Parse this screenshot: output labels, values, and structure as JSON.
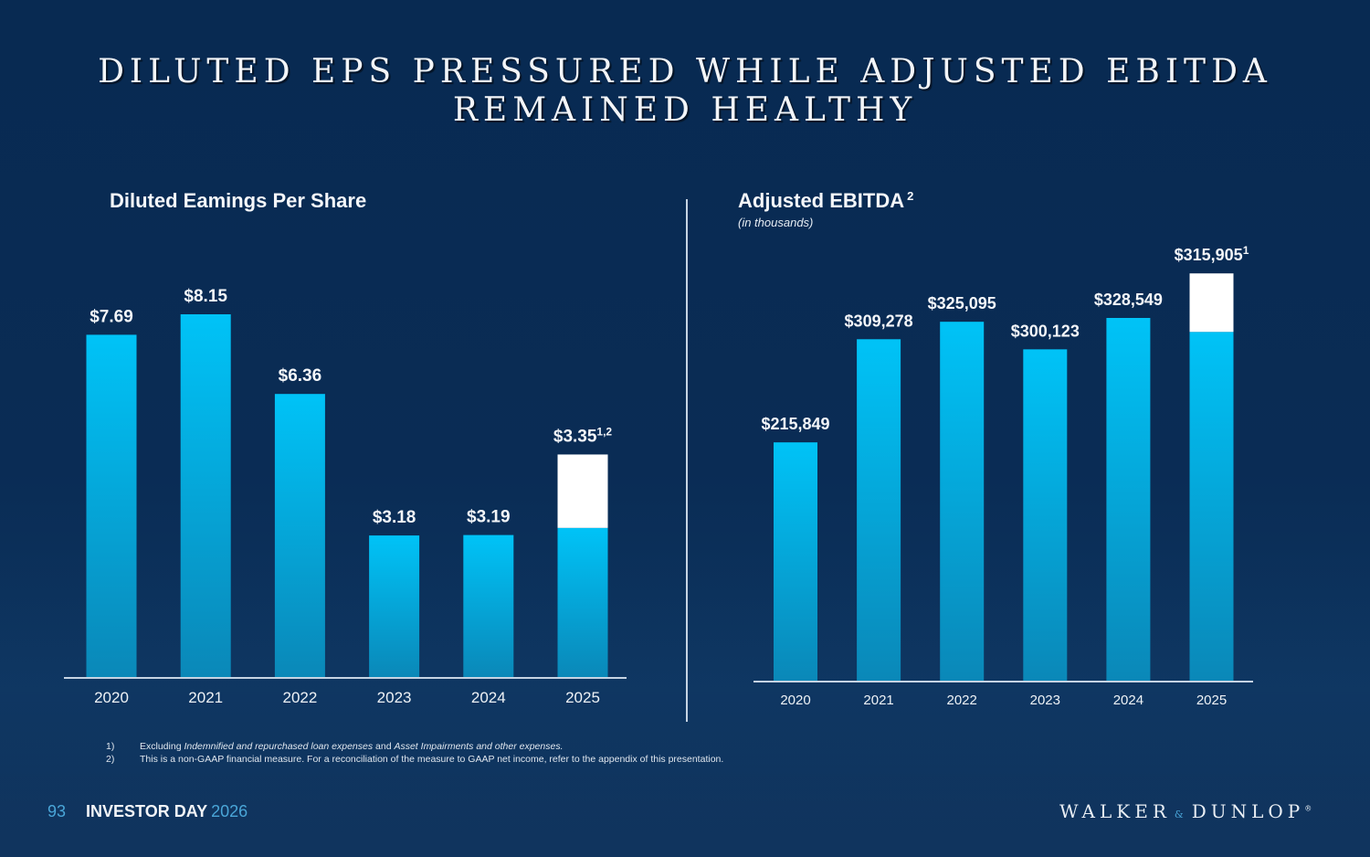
{
  "slide": {
    "title_line1": "DILUTED EPS PRESSURED WHILE ADJUSTED EBITDA",
    "title_line2": "REMAINED HEALTHY",
    "page_number": "93",
    "event_label": "INVESTOR DAY",
    "event_year": "2026",
    "logo_left": "WALKER",
    "logo_amp": "&",
    "logo_right": "DUNLOP",
    "logo_mark": "®"
  },
  "footnotes": [
    {
      "num": "1)",
      "text_plain": "Excluding ",
      "text_italic": "Indemnified and repurchased loan expenses",
      "text_plain2": " and ",
      "text_italic2": "Asset Impairments and other expenses."
    },
    {
      "num": "2)",
      "text": "This is a non-GAAP financial measure. For a reconciliation of the measure to GAAP net income, refer to the appendix of this presentation."
    }
  ],
  "colors": {
    "background": "#0a2c55",
    "bar_top": "#00c3f7",
    "bar_bottom": "#0a88b8",
    "highlight_box": "#ffffff",
    "axis": "#c6d4e3",
    "accent": "#4aa6d8"
  },
  "chart_data": [
    {
      "type": "bar",
      "title": "Diluted Earnings Per Share",
      "title_display": "Diluted Eamings Per Share",
      "subtitle": "",
      "xlabel": "",
      "ylabel": "",
      "categories": [
        "2020",
        "2021",
        "2022",
        "2023",
        "2024",
        "2025"
      ],
      "values": [
        7.69,
        8.15,
        6.36,
        3.18,
        3.19,
        3.35
      ],
      "data_labels": [
        "$7.69",
        "$8.15",
        "$6.36",
        "$3.18",
        "$3.19",
        "$3.35"
      ],
      "label_superscripts": [
        "",
        "",
        "",
        "",
        "",
        "1,2"
      ],
      "highlight_last_top_of": 1.65,
      "ylim": [
        0,
        8.15
      ],
      "grid": false,
      "legend": "none"
    },
    {
      "type": "bar",
      "title": "Adjusted EBITDA",
      "title_superscript": "2",
      "subtitle": "(in thousands)",
      "xlabel": "",
      "ylabel": "",
      "categories": [
        "2020",
        "2021",
        "2022",
        "2023",
        "2024",
        "2025"
      ],
      "values": [
        215849,
        309278,
        325095,
        300123,
        328549,
        315905
      ],
      "data_labels": [
        "$215,849",
        "$309,278",
        "$325,095",
        "$300,123",
        "$328,549",
        "$315,905"
      ],
      "label_superscripts": [
        "",
        "",
        "",
        "",
        "",
        "1"
      ],
      "highlight_last_top_of": 53000,
      "ylim": [
        0,
        328549
      ],
      "grid": false,
      "legend": "none"
    }
  ]
}
